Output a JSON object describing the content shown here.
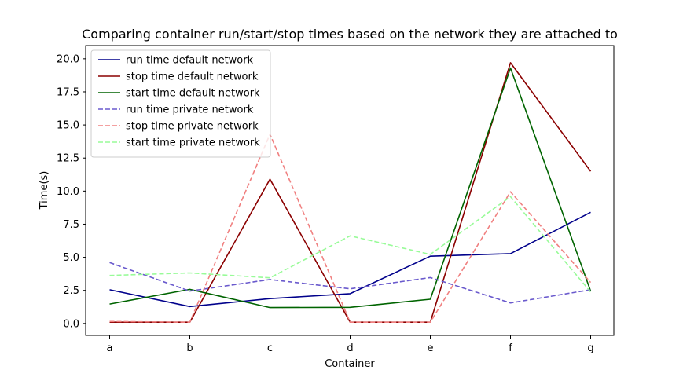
{
  "chart_data": {
    "type": "line",
    "title": "Comparing container run/start/stop times based on the network they are attached to",
    "xlabel": "Container",
    "ylabel": "Time(s)",
    "categories": [
      "a",
      "b",
      "c",
      "d",
      "e",
      "f",
      "g"
    ],
    "ylim": [
      -0.9,
      21.0
    ],
    "yticks": [
      "0.0",
      "2.5",
      "5.0",
      "7.5",
      "10.0",
      "12.5",
      "15.0",
      "17.5",
      "20.0"
    ],
    "legend_position": "top-left",
    "grid": false,
    "series": [
      {
        "name": "run time default network",
        "color": "#00008b",
        "style": "solid",
        "values": [
          2.55,
          1.28,
          1.88,
          2.25,
          5.08,
          5.28,
          8.4
        ]
      },
      {
        "name": "stop time default network",
        "color": "#8b0000",
        "style": "solid",
        "values": [
          0.1,
          0.1,
          10.9,
          0.1,
          0.1,
          19.7,
          11.5
        ]
      },
      {
        "name": "start time default network",
        "color": "#006400",
        "style": "solid",
        "values": [
          1.47,
          2.58,
          1.2,
          1.22,
          1.83,
          19.3,
          2.45
        ]
      },
      {
        "name": "run time private network",
        "color": "#6a5acd",
        "style": "dashed",
        "values": [
          4.6,
          2.45,
          3.32,
          2.62,
          3.47,
          1.55,
          2.55
        ]
      },
      {
        "name": "stop time private network",
        "color": "#f08080",
        "style": "dashed",
        "values": [
          0.15,
          0.1,
          14.3,
          0.1,
          0.1,
          9.95,
          3.1
        ]
      },
      {
        "name": "start time private network",
        "color": "#98fb98",
        "style": "dashed",
        "values": [
          3.63,
          3.82,
          3.45,
          6.62,
          5.22,
          9.58,
          2.38
        ]
      }
    ]
  }
}
